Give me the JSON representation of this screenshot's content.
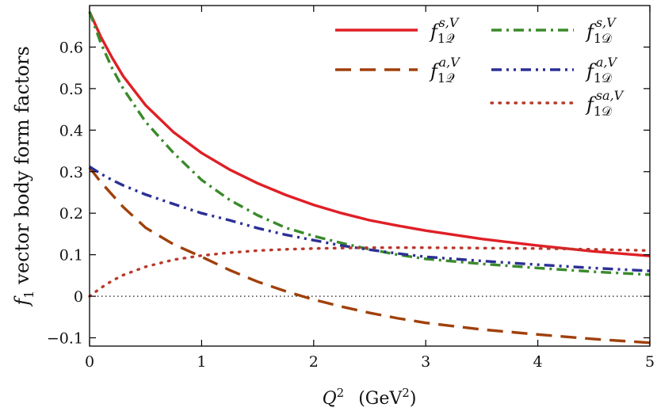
{
  "chart_data": {
    "type": "line",
    "xlabel_symbol": "Q",
    "xlabel_symbol_power": "2",
    "xlabel_units_prefix": "(GeV",
    "xlabel_units_power": "2",
    "xlabel_units_suffix": ")",
    "ylabel_symbol": "f",
    "ylabel_symbol_sub": "1",
    "ylabel_text": "vector body form factors",
    "xlim": [
      0,
      5
    ],
    "ylim": [
      -0.12,
      0.7
    ],
    "xticks": [
      0,
      1,
      2,
      3,
      4,
      5
    ],
    "xtick_labels": [
      "0",
      "1",
      "2",
      "3",
      "4",
      "5"
    ],
    "yticks": [
      -0.1,
      0,
      0.1,
      0.2,
      0.3,
      0.4,
      0.5,
      0.6
    ],
    "ytick_labels": [
      "−0.1",
      "0",
      "0.1",
      "0.2",
      "0.3",
      "0.4",
      "0.5",
      "0.6"
    ],
    "zero_line": true,
    "legend_position": "top-right",
    "x": [
      0,
      0.1,
      0.2,
      0.3,
      0.5,
      0.75,
      1.0,
      1.25,
      1.5,
      1.75,
      2.0,
      2.25,
      2.5,
      2.75,
      3.0,
      3.5,
      4.0,
      4.5,
      5.0
    ],
    "series": [
      {
        "name": "f1Q s,V",
        "label_base": "f",
        "label_sup": "s,V",
        "label_sub": "1𝒬",
        "color": "#e01f26",
        "dash": "solid",
        "values": [
          0.685,
          0.625,
          0.575,
          0.53,
          0.46,
          0.395,
          0.345,
          0.305,
          0.272,
          0.244,
          0.22,
          0.2,
          0.183,
          0.17,
          0.158,
          0.138,
          0.122,
          0.108,
          0.097
        ]
      },
      {
        "name": "f1Q a,V",
        "label_base": "f",
        "label_sup": "a,V",
        "label_sub": "1𝒬",
        "color": "#a0400a",
        "dash": "longdash",
        "values": [
          0.31,
          0.275,
          0.245,
          0.215,
          0.165,
          0.125,
          0.095,
          0.063,
          0.035,
          0.012,
          -0.008,
          -0.025,
          -0.04,
          -0.053,
          -0.064,
          -0.08,
          -0.092,
          -0.103,
          -0.112
        ]
      },
      {
        "name": "f1D s,V",
        "label_base": "f",
        "label_sup": "s,V",
        "label_sub": "1𝒟",
        "color": "#3a8a2a",
        "dash": "dashdot",
        "values": [
          0.685,
          0.61,
          0.55,
          0.5,
          0.42,
          0.345,
          0.28,
          0.232,
          0.195,
          0.165,
          0.145,
          0.128,
          0.113,
          0.1,
          0.09,
          0.078,
          0.068,
          0.059,
          0.052
        ]
      },
      {
        "name": "f1D a,V",
        "label_base": "f",
        "label_sup": "a,V",
        "label_sub": "1𝒟",
        "color": "#2b2f96",
        "dash": "dashdotdot",
        "values": [
          0.312,
          0.295,
          0.28,
          0.267,
          0.245,
          0.222,
          0.2,
          0.183,
          0.164,
          0.148,
          0.135,
          0.122,
          0.112,
          0.103,
          0.095,
          0.085,
          0.076,
          0.068,
          0.061
        ]
      },
      {
        "name": "f1D sa,V",
        "label_base": "f",
        "label_sup": "sa,V",
        "label_sub": "1𝒟",
        "color": "#b8382a",
        "dash": "dotted",
        "values": [
          0.0,
          0.02,
          0.037,
          0.051,
          0.071,
          0.088,
          0.098,
          0.105,
          0.11,
          0.113,
          0.115,
          0.116,
          0.117,
          0.117,
          0.117,
          0.116,
          0.115,
          0.113,
          0.11
        ]
      }
    ]
  }
}
